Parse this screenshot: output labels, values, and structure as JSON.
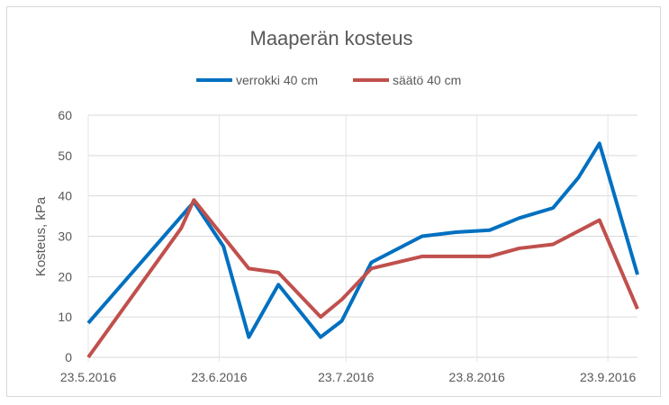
{
  "chart_data": {
    "type": "line",
    "title": "Maaperän kosteus",
    "xlabel": "",
    "ylabel": "Kosteus, kPa",
    "ylim": [
      0,
      60
    ],
    "yticks": [
      0,
      10,
      20,
      30,
      40,
      50,
      60
    ],
    "xlim": [
      "23.5.2016",
      "30.9.2016"
    ],
    "xticks": [
      "23.5.2016",
      "23.6.2016",
      "23.7.2016",
      "23.8.2016",
      "23.9.2016"
    ],
    "grid": true,
    "legend": "top",
    "series": [
      {
        "name": "verrokki 40 cm",
        "color": "#0070c0",
        "x": [
          "23.5.2016",
          "17.6.2016",
          "24.6.2016",
          "30.6.2016",
          "7.7.2016",
          "17.7.2016",
          "22.7.2016",
          "29.7.2016",
          "10.8.2016",
          "18.8.2016",
          "26.8.2016",
          "2.9.2016",
          "10.9.2016",
          "16.9.2016",
          "21.9.2016",
          "30.9.2016"
        ],
        "y": [
          8.5,
          38.5,
          27.5,
          5,
          18,
          5,
          9,
          23.5,
          30,
          31,
          31.5,
          34.5,
          37,
          44.5,
          53,
          20.5
        ]
      },
      {
        "name": "säätö 40 cm",
        "color": "#c0504d",
        "x": [
          "23.5.2016",
          "14.6.2016",
          "17.6.2016",
          "30.6.2016",
          "7.7.2016",
          "17.7.2016",
          "22.7.2016",
          "29.7.2016",
          "10.8.2016",
          "26.8.2016",
          "2.9.2016",
          "10.9.2016",
          "21.9.2016",
          "30.9.2016"
        ],
        "y": [
          0,
          32,
          39,
          22,
          21,
          10,
          14.3,
          22,
          25,
          25,
          27,
          28,
          34,
          12
        ]
      }
    ]
  }
}
